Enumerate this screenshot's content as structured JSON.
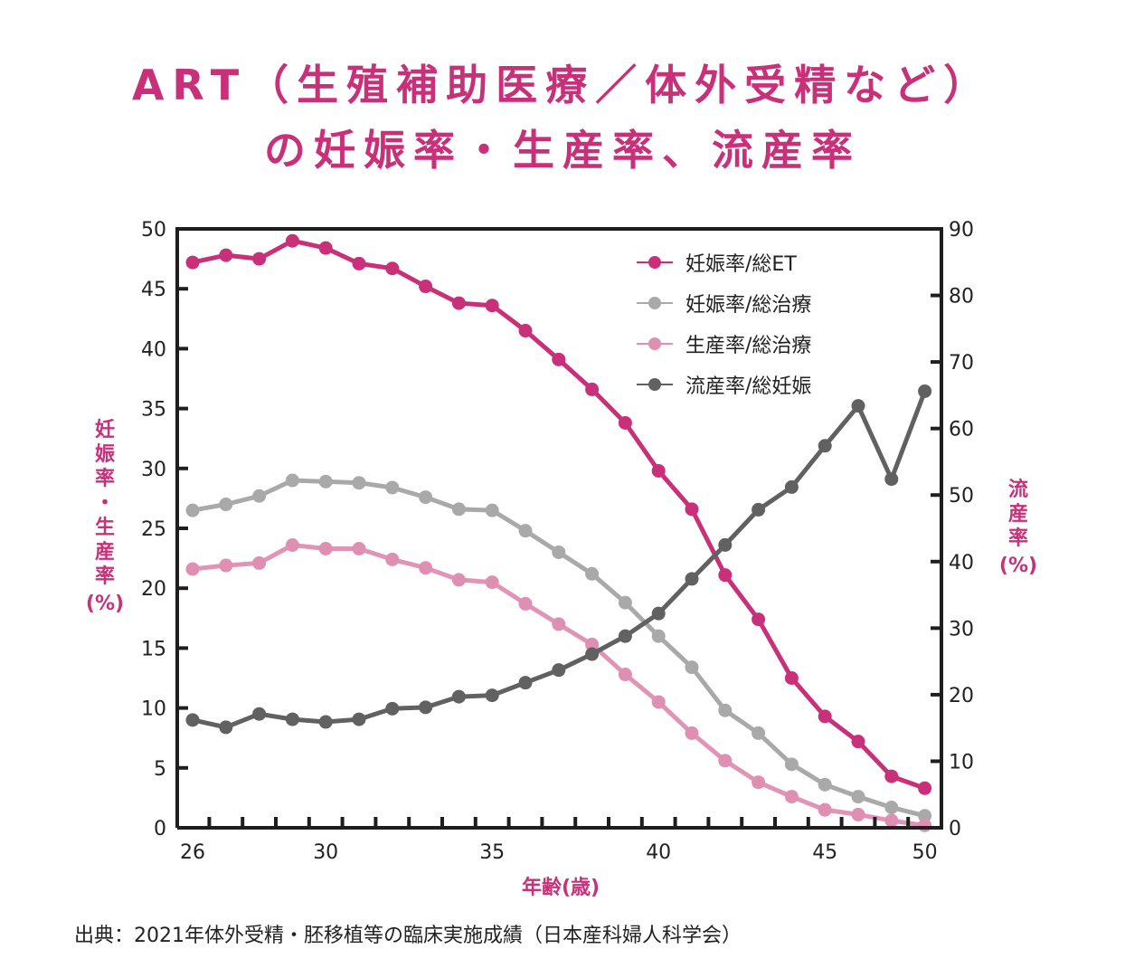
{
  "chart_data": {
    "type": "line",
    "title": [
      "ART（生殖補助医療／体外受精など）",
      "の妊娠率・生産率、流産率"
    ],
    "xlabel": "年齢(歳)",
    "ylabel_left": [
      "妊",
      "娠",
      "率",
      "・",
      "生",
      "産",
      "率",
      "(%)"
    ],
    "ylabel_right": [
      "流",
      "産",
      "率",
      "(%)"
    ],
    "ylim_left": [
      0,
      50
    ],
    "ylim_right": [
      0,
      90
    ],
    "yticks_left": [
      "0",
      "5",
      "10",
      "15",
      "20",
      "25",
      "30",
      "35",
      "40",
      "45",
      "50"
    ],
    "yticks_right": [
      "0",
      "10",
      "20",
      "30",
      "40",
      "50",
      "60",
      "70",
      "80",
      "90"
    ],
    "x_point_count": 23,
    "xtick_labels": [
      {
        "index": 0,
        "label": "26"
      },
      {
        "index": 4,
        "label": "30"
      },
      {
        "index": 9,
        "label": "35"
      },
      {
        "index": 14,
        "label": "40"
      },
      {
        "index": 19,
        "label": "45"
      },
      {
        "index": 22,
        "label": "50"
      }
    ],
    "grid": false,
    "legend_position": "top-right",
    "series": [
      {
        "name": "妊娠率/総ET",
        "axis": "left",
        "color": "#c8307a",
        "values": [
          47.2,
          47.8,
          47.5,
          49.0,
          48.4,
          47.1,
          46.7,
          45.2,
          43.8,
          43.6,
          41.5,
          39.1,
          36.6,
          33.8,
          29.8,
          26.6,
          21.1,
          17.4,
          12.5,
          9.3,
          7.2,
          4.3,
          3.3
        ]
      },
      {
        "name": "妊娠率/総治療",
        "axis": "left",
        "color": "#a9a9a9",
        "values": [
          26.5,
          27.0,
          27.7,
          29.0,
          28.9,
          28.8,
          28.4,
          27.6,
          26.6,
          26.5,
          24.8,
          23.0,
          21.2,
          18.8,
          16.0,
          13.4,
          9.8,
          7.9,
          5.3,
          3.6,
          2.6,
          1.7,
          1.0
        ]
      },
      {
        "name": "生産率/総治療",
        "axis": "left",
        "color": "#df8fb2",
        "values": [
          21.6,
          21.9,
          22.1,
          23.6,
          23.3,
          23.3,
          22.4,
          21.7,
          20.7,
          20.5,
          18.7,
          17.0,
          15.3,
          12.8,
          10.5,
          7.9,
          5.6,
          3.8,
          2.6,
          1.5,
          1.1,
          0.6,
          0.2
        ]
      },
      {
        "name": "流産率/総妊娠",
        "axis": "right",
        "color": "#616161",
        "values": [
          16.2,
          15.1,
          17.1,
          16.3,
          15.9,
          16.3,
          17.9,
          18.1,
          19.7,
          19.9,
          21.8,
          23.7,
          26.1,
          28.8,
          32.2,
          37.4,
          42.5,
          47.8,
          51.2,
          57.4,
          63.4,
          52.4,
          65.6
        ]
      }
    ]
  },
  "footer": {
    "source": "出典：2021年体外受精・胚移植等の臨床実施成績（日本産科婦人科学会）"
  }
}
